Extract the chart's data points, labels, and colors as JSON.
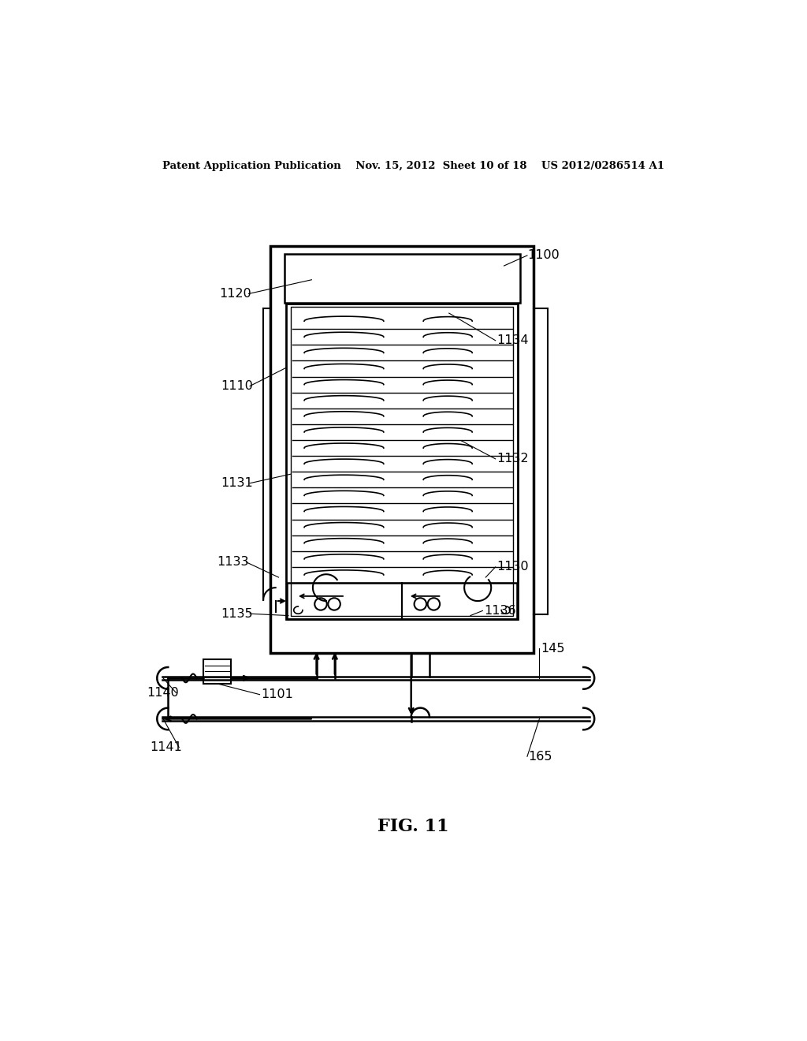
{
  "bg_color": "#ffffff",
  "line_color": "#000000",
  "header_text": "Patent Application Publication    Nov. 15, 2012  Sheet 10 of 18    US 2012/0286514 A1",
  "fig_label": "FIG. 11"
}
